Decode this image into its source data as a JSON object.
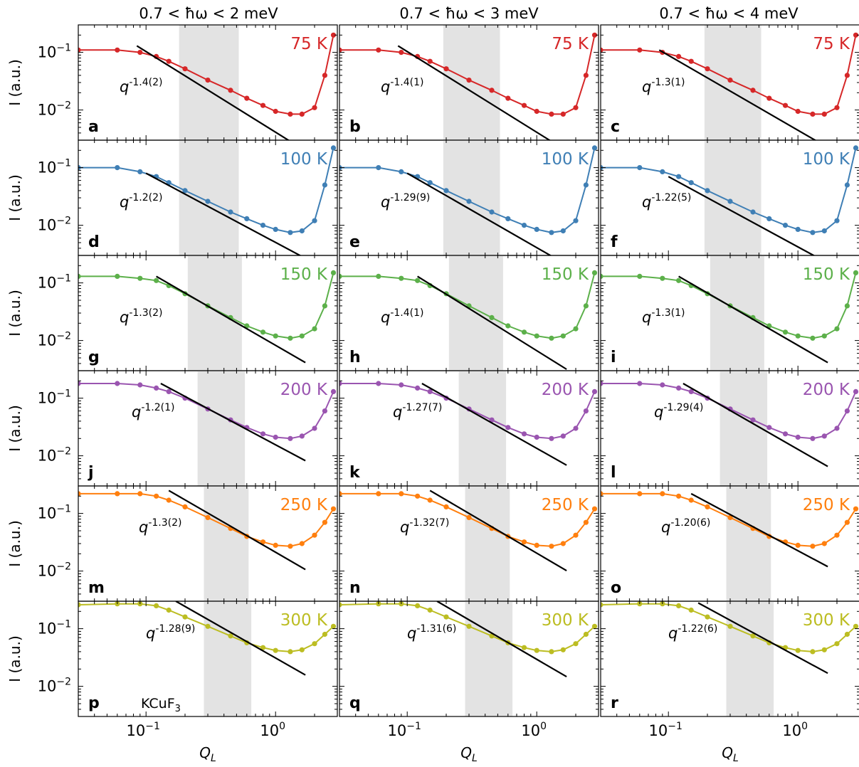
{
  "chart_data": {
    "type": "scatter",
    "x_scale": "log",
    "y_scale": "log",
    "xlim": [
      0.03,
      3.0
    ],
    "ylim": [
      0.003,
      0.3
    ],
    "xlabel": "Q_L",
    "ylabel": "I (a.u.)",
    "x_tick_labels": [
      "10^-1",
      "10^0"
    ],
    "y_tick_labels": [
      "10^-1",
      "10^-2"
    ],
    "column_titles": [
      "0.7 < ħω < 2 meV",
      "0.7 < ħω < 3 meV",
      "0.7 < ħω < 4 meV"
    ],
    "material_label": "KCuF3",
    "rows": [
      {
        "temperature": "75 K",
        "color": "#d62728",
        "shade": [
          [
            0.18,
            0.52
          ],
          [
            0.19,
            0.52
          ],
          [
            0.19,
            0.52
          ]
        ]
      },
      {
        "temperature": "100 K",
        "color": "#3f7fb5",
        "shade": [
          [
            0.18,
            0.52
          ],
          [
            0.19,
            0.52
          ],
          [
            0.19,
            0.52
          ]
        ]
      },
      {
        "temperature": "150 K",
        "color": "#5cb04a",
        "shade": [
          [
            0.21,
            0.55
          ],
          [
            0.21,
            0.55
          ],
          [
            0.21,
            0.55
          ]
        ]
      },
      {
        "temperature": "200 K",
        "color": "#9a55b0",
        "shade": [
          [
            0.25,
            0.58
          ],
          [
            0.25,
            0.58
          ],
          [
            0.25,
            0.58
          ]
        ]
      },
      {
        "temperature": "250 K",
        "color": "#ff7f0e",
        "shade": [
          [
            0.28,
            0.62
          ],
          [
            0.28,
            0.62
          ],
          [
            0.28,
            0.62
          ]
        ]
      },
      {
        "temperature": "300 K",
        "color": "#bcbd22",
        "shade": [
          [
            0.28,
            0.65
          ],
          [
            0.28,
            0.65
          ],
          [
            0.28,
            0.65
          ]
        ]
      }
    ],
    "panels": [
      {
        "label": "a",
        "row": 0,
        "col": 0,
        "exponent": "-1.4(2)",
        "slope": -1.4,
        "fit_range": [
          0.085,
          1.4
        ],
        "fit_y0": 0.13
      },
      {
        "label": "b",
        "row": 0,
        "col": 1,
        "exponent": "-1.4(1)",
        "slope": -1.4,
        "fit_range": [
          0.085,
          1.7
        ],
        "fit_y0": 0.13
      },
      {
        "label": "c",
        "row": 0,
        "col": 2,
        "exponent": "-1.3(1)",
        "slope": -1.3,
        "fit_range": [
          0.085,
          1.7
        ],
        "fit_y0": 0.11
      },
      {
        "label": "d",
        "row": 1,
        "col": 0,
        "exponent": "-1.2(2)",
        "slope": -1.2,
        "fit_range": [
          0.1,
          1.7
        ],
        "fit_y0": 0.08
      },
      {
        "label": "e",
        "row": 1,
        "col": 1,
        "exponent": "-1.29(9)",
        "slope": -1.29,
        "fit_range": [
          0.1,
          1.7
        ],
        "fit_y0": 0.08
      },
      {
        "label": "f",
        "row": 1,
        "col": 2,
        "exponent": "-1.22(5)",
        "slope": -1.22,
        "fit_range": [
          0.1,
          1.7
        ],
        "fit_y0": 0.07
      },
      {
        "label": "g",
        "row": 2,
        "col": 0,
        "exponent": "-1.3(2)",
        "slope": -1.3,
        "fit_range": [
          0.12,
          1.7
        ],
        "fit_y0": 0.13
      },
      {
        "label": "h",
        "row": 2,
        "col": 1,
        "exponent": "-1.4(1)",
        "slope": -1.4,
        "fit_range": [
          0.12,
          1.7
        ],
        "fit_y0": 0.13
      },
      {
        "label": "i",
        "row": 2,
        "col": 2,
        "exponent": "-1.3(1)",
        "slope": -1.3,
        "fit_range": [
          0.12,
          1.7
        ],
        "fit_y0": 0.13
      },
      {
        "label": "j",
        "row": 3,
        "col": 0,
        "exponent": "-1.2(1)",
        "slope": -1.2,
        "fit_range": [
          0.13,
          1.7
        ],
        "fit_y0": 0.18
      },
      {
        "label": "k",
        "row": 3,
        "col": 1,
        "exponent": "-1.27(7)",
        "slope": -1.27,
        "fit_range": [
          0.13,
          1.7
        ],
        "fit_y0": 0.18
      },
      {
        "label": "l",
        "row": 3,
        "col": 2,
        "exponent": "-1.29(4)",
        "slope": -1.29,
        "fit_range": [
          0.13,
          1.7
        ],
        "fit_y0": 0.18
      },
      {
        "label": "m",
        "row": 4,
        "col": 0,
        "exponent": "-1.3(2)",
        "slope": -1.3,
        "fit_range": [
          0.15,
          1.7
        ],
        "fit_y0": 0.25
      },
      {
        "label": "n",
        "row": 4,
        "col": 1,
        "exponent": "-1.32(7)",
        "slope": -1.32,
        "fit_range": [
          0.15,
          1.7
        ],
        "fit_y0": 0.25
      },
      {
        "label": "o",
        "row": 4,
        "col": 2,
        "exponent": "-1.20(6)",
        "slope": -1.2,
        "fit_range": [
          0.15,
          1.7
        ],
        "fit_y0": 0.22
      },
      {
        "label": "p",
        "row": 5,
        "col": 0,
        "exponent": "-1.28(9)",
        "slope": -1.28,
        "fit_range": [
          0.17,
          1.7
        ],
        "fit_y0": 0.3
      },
      {
        "label": "q",
        "row": 5,
        "col": 1,
        "exponent": "-1.31(6)",
        "slope": -1.31,
        "fit_range": [
          0.17,
          1.7
        ],
        "fit_y0": 0.3
      },
      {
        "label": "r",
        "row": 5,
        "col": 2,
        "exponent": "-1.22(6)",
        "slope": -1.22,
        "fit_range": [
          0.17,
          1.7
        ],
        "fit_y0": 0.28
      }
    ],
    "series": [
      {
        "name": "75 K",
        "row": 0,
        "x": [
          0.03,
          0.06,
          0.09,
          0.12,
          0.15,
          0.2,
          0.3,
          0.45,
          0.6,
          0.8,
          1.0,
          1.3,
          1.6,
          2.0,
          2.4,
          2.8
        ],
        "y": [
          0.11,
          0.11,
          0.1,
          0.085,
          0.07,
          0.052,
          0.033,
          0.022,
          0.016,
          0.012,
          0.0095,
          0.0085,
          0.0085,
          0.011,
          0.04,
          0.2
        ]
      },
      {
        "name": "100 K",
        "row": 1,
        "x": [
          0.03,
          0.06,
          0.09,
          0.12,
          0.15,
          0.2,
          0.3,
          0.45,
          0.6,
          0.8,
          1.0,
          1.3,
          1.6,
          2.0,
          2.4,
          2.8
        ],
        "y": [
          0.1,
          0.1,
          0.085,
          0.07,
          0.055,
          0.04,
          0.026,
          0.017,
          0.013,
          0.01,
          0.0085,
          0.0075,
          0.008,
          0.012,
          0.05,
          0.22
        ]
      },
      {
        "name": "150 K",
        "row": 2,
        "x": [
          0.03,
          0.06,
          0.09,
          0.12,
          0.15,
          0.2,
          0.3,
          0.45,
          0.6,
          0.8,
          1.0,
          1.3,
          1.6,
          2.0,
          2.4,
          2.8
        ],
        "y": [
          0.13,
          0.13,
          0.12,
          0.11,
          0.09,
          0.065,
          0.04,
          0.025,
          0.018,
          0.014,
          0.012,
          0.011,
          0.012,
          0.016,
          0.04,
          0.15
        ]
      },
      {
        "name": "200 K",
        "row": 3,
        "x": [
          0.03,
          0.06,
          0.09,
          0.12,
          0.15,
          0.2,
          0.3,
          0.45,
          0.6,
          0.8,
          1.0,
          1.3,
          1.6,
          2.0,
          2.4,
          2.8
        ],
        "y": [
          0.18,
          0.18,
          0.17,
          0.15,
          0.13,
          0.1,
          0.065,
          0.042,
          0.031,
          0.024,
          0.021,
          0.02,
          0.022,
          0.03,
          0.06,
          0.13
        ]
      },
      {
        "name": "250 K",
        "row": 4,
        "x": [
          0.03,
          0.06,
          0.09,
          0.12,
          0.15,
          0.2,
          0.3,
          0.45,
          0.6,
          0.8,
          1.0,
          1.3,
          1.6,
          2.0,
          2.4,
          2.8
        ],
        "y": [
          0.22,
          0.22,
          0.22,
          0.2,
          0.17,
          0.13,
          0.085,
          0.055,
          0.04,
          0.032,
          0.028,
          0.027,
          0.03,
          0.042,
          0.07,
          0.12
        ]
      },
      {
        "name": "300 K",
        "row": 5,
        "x": [
          0.03,
          0.06,
          0.09,
          0.12,
          0.15,
          0.2,
          0.3,
          0.45,
          0.6,
          0.8,
          1.0,
          1.3,
          1.6,
          2.0,
          2.4,
          2.8
        ],
        "y": [
          0.26,
          0.27,
          0.27,
          0.25,
          0.21,
          0.16,
          0.11,
          0.075,
          0.057,
          0.047,
          0.042,
          0.04,
          0.043,
          0.055,
          0.08,
          0.11
        ]
      }
    ]
  }
}
